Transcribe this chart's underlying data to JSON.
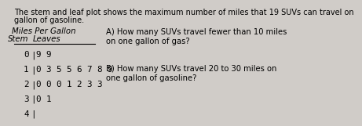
{
  "title_line1": "The stem and leaf plot shows the maximum number of miles that 19 SUVs can travel on",
  "title_line2": "gallon of gasoline.",
  "col_header_stem": "Stem",
  "col_header_leaves": "Leaves",
  "table_title": "Miles Per Gallon",
  "stems": [
    "0",
    "1",
    "2",
    "3",
    "4"
  ],
  "leaves": [
    "9 9",
    "0 3 5 5 6 7 8 9",
    "0 0 0 1 2 3 3",
    "0 1",
    ""
  ],
  "question_a": "A) How many SUVs travel fewer than 10 miles\non one gallon of gas?",
  "question_b": "B) How many SUVs travel 20 to 30 miles on\none gallon of gasoline?",
  "bg_color": "#d0ccc8",
  "text_color": "#000000",
  "font_size_title": 7.0,
  "font_size_table": 7.8,
  "font_size_questions": 7.2
}
